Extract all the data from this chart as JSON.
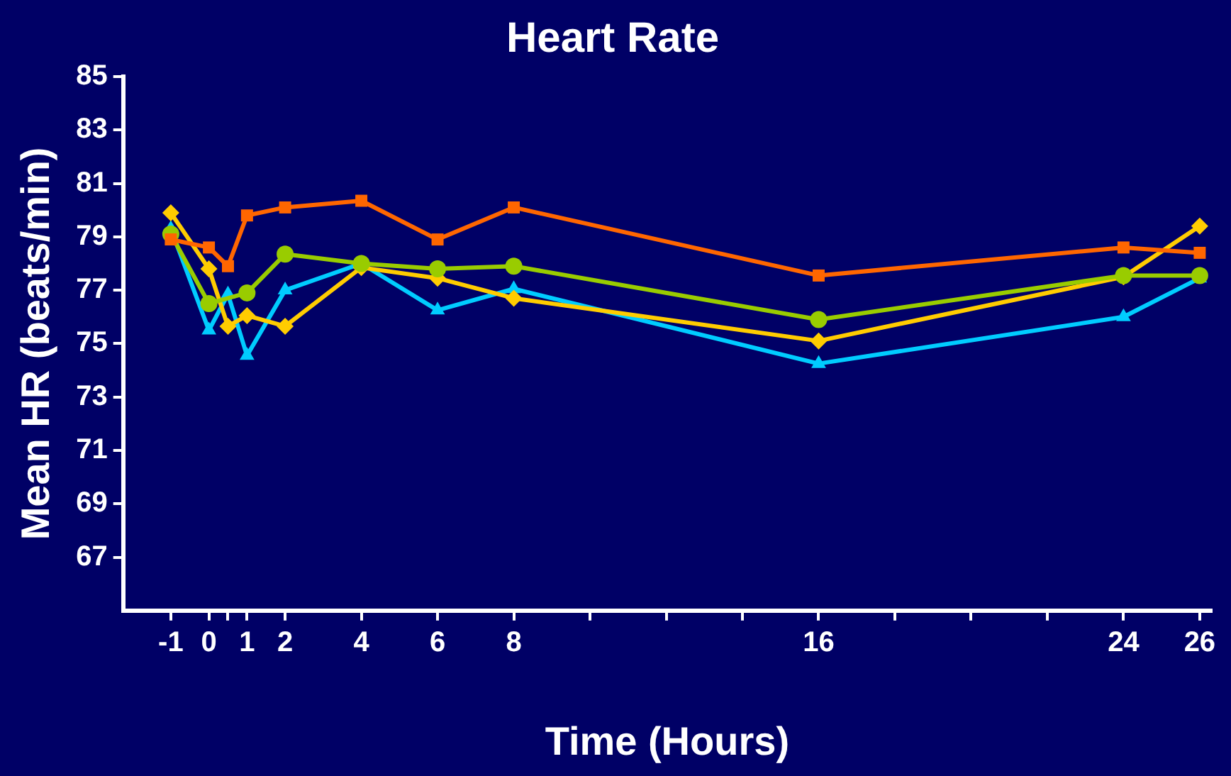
{
  "chart_data": {
    "type": "line",
    "title": "Heart Rate",
    "xlabel": "Time (Hours)",
    "ylabel": "Mean HR (beats/min)",
    "xlim": [
      -2.25,
      26.3
    ],
    "xticks": [
      -1,
      0,
      {
        "value": 0.5,
        "label": null
      },
      1,
      2,
      4,
      6,
      8,
      {
        "value": 10,
        "label": null
      },
      {
        "value": 12,
        "label": null
      },
      {
        "value": 14,
        "label": null
      },
      16,
      {
        "value": 18,
        "label": null
      },
      {
        "value": 20,
        "label": null
      },
      {
        "value": 22,
        "label": null
      },
      24,
      26
    ],
    "ylim": [
      65,
      85
    ],
    "yticks": [
      67,
      69,
      71,
      73,
      75,
      77,
      79,
      81,
      83,
      85
    ],
    "grid": false,
    "legend": false,
    "line_style": "solid",
    "series": [
      {
        "color": "#ff6600",
        "marker": "square",
        "x": [
          -1,
          0,
          0.5,
          1,
          2,
          4,
          6,
          8,
          16,
          24,
          26
        ],
        "values": [
          78.9,
          78.6,
          77.9,
          79.8,
          80.1,
          80.35,
          78.9,
          80.1,
          77.55,
          78.6,
          78.4
        ]
      },
      {
        "color": "#99cc00",
        "marker": "circle",
        "x": [
          -1,
          0,
          1,
          2,
          4,
          6,
          8,
          16,
          24,
          26
        ],
        "values": [
          79.1,
          76.5,
          76.9,
          78.35,
          78.0,
          77.8,
          77.9,
          75.9,
          77.55,
          77.55
        ]
      },
      {
        "color": "#ffcc00",
        "marker": "diamond",
        "x": [
          -1,
          0,
          0.5,
          1,
          2,
          4,
          6,
          8,
          16,
          24,
          26
        ],
        "values": [
          79.9,
          77.8,
          75.65,
          76.05,
          75.65,
          77.85,
          77.45,
          76.7,
          75.1,
          77.5,
          79.4
        ]
      },
      {
        "color": "#00ccff",
        "marker": "triangle",
        "x": [
          -1,
          0,
          0.5,
          1,
          2,
          4,
          6,
          8,
          16,
          24,
          26
        ],
        "values": [
          79.3,
          75.5,
          76.85,
          74.55,
          77.0,
          78.0,
          76.25,
          77.05,
          74.25,
          76.0,
          77.45
        ]
      }
    ]
  }
}
